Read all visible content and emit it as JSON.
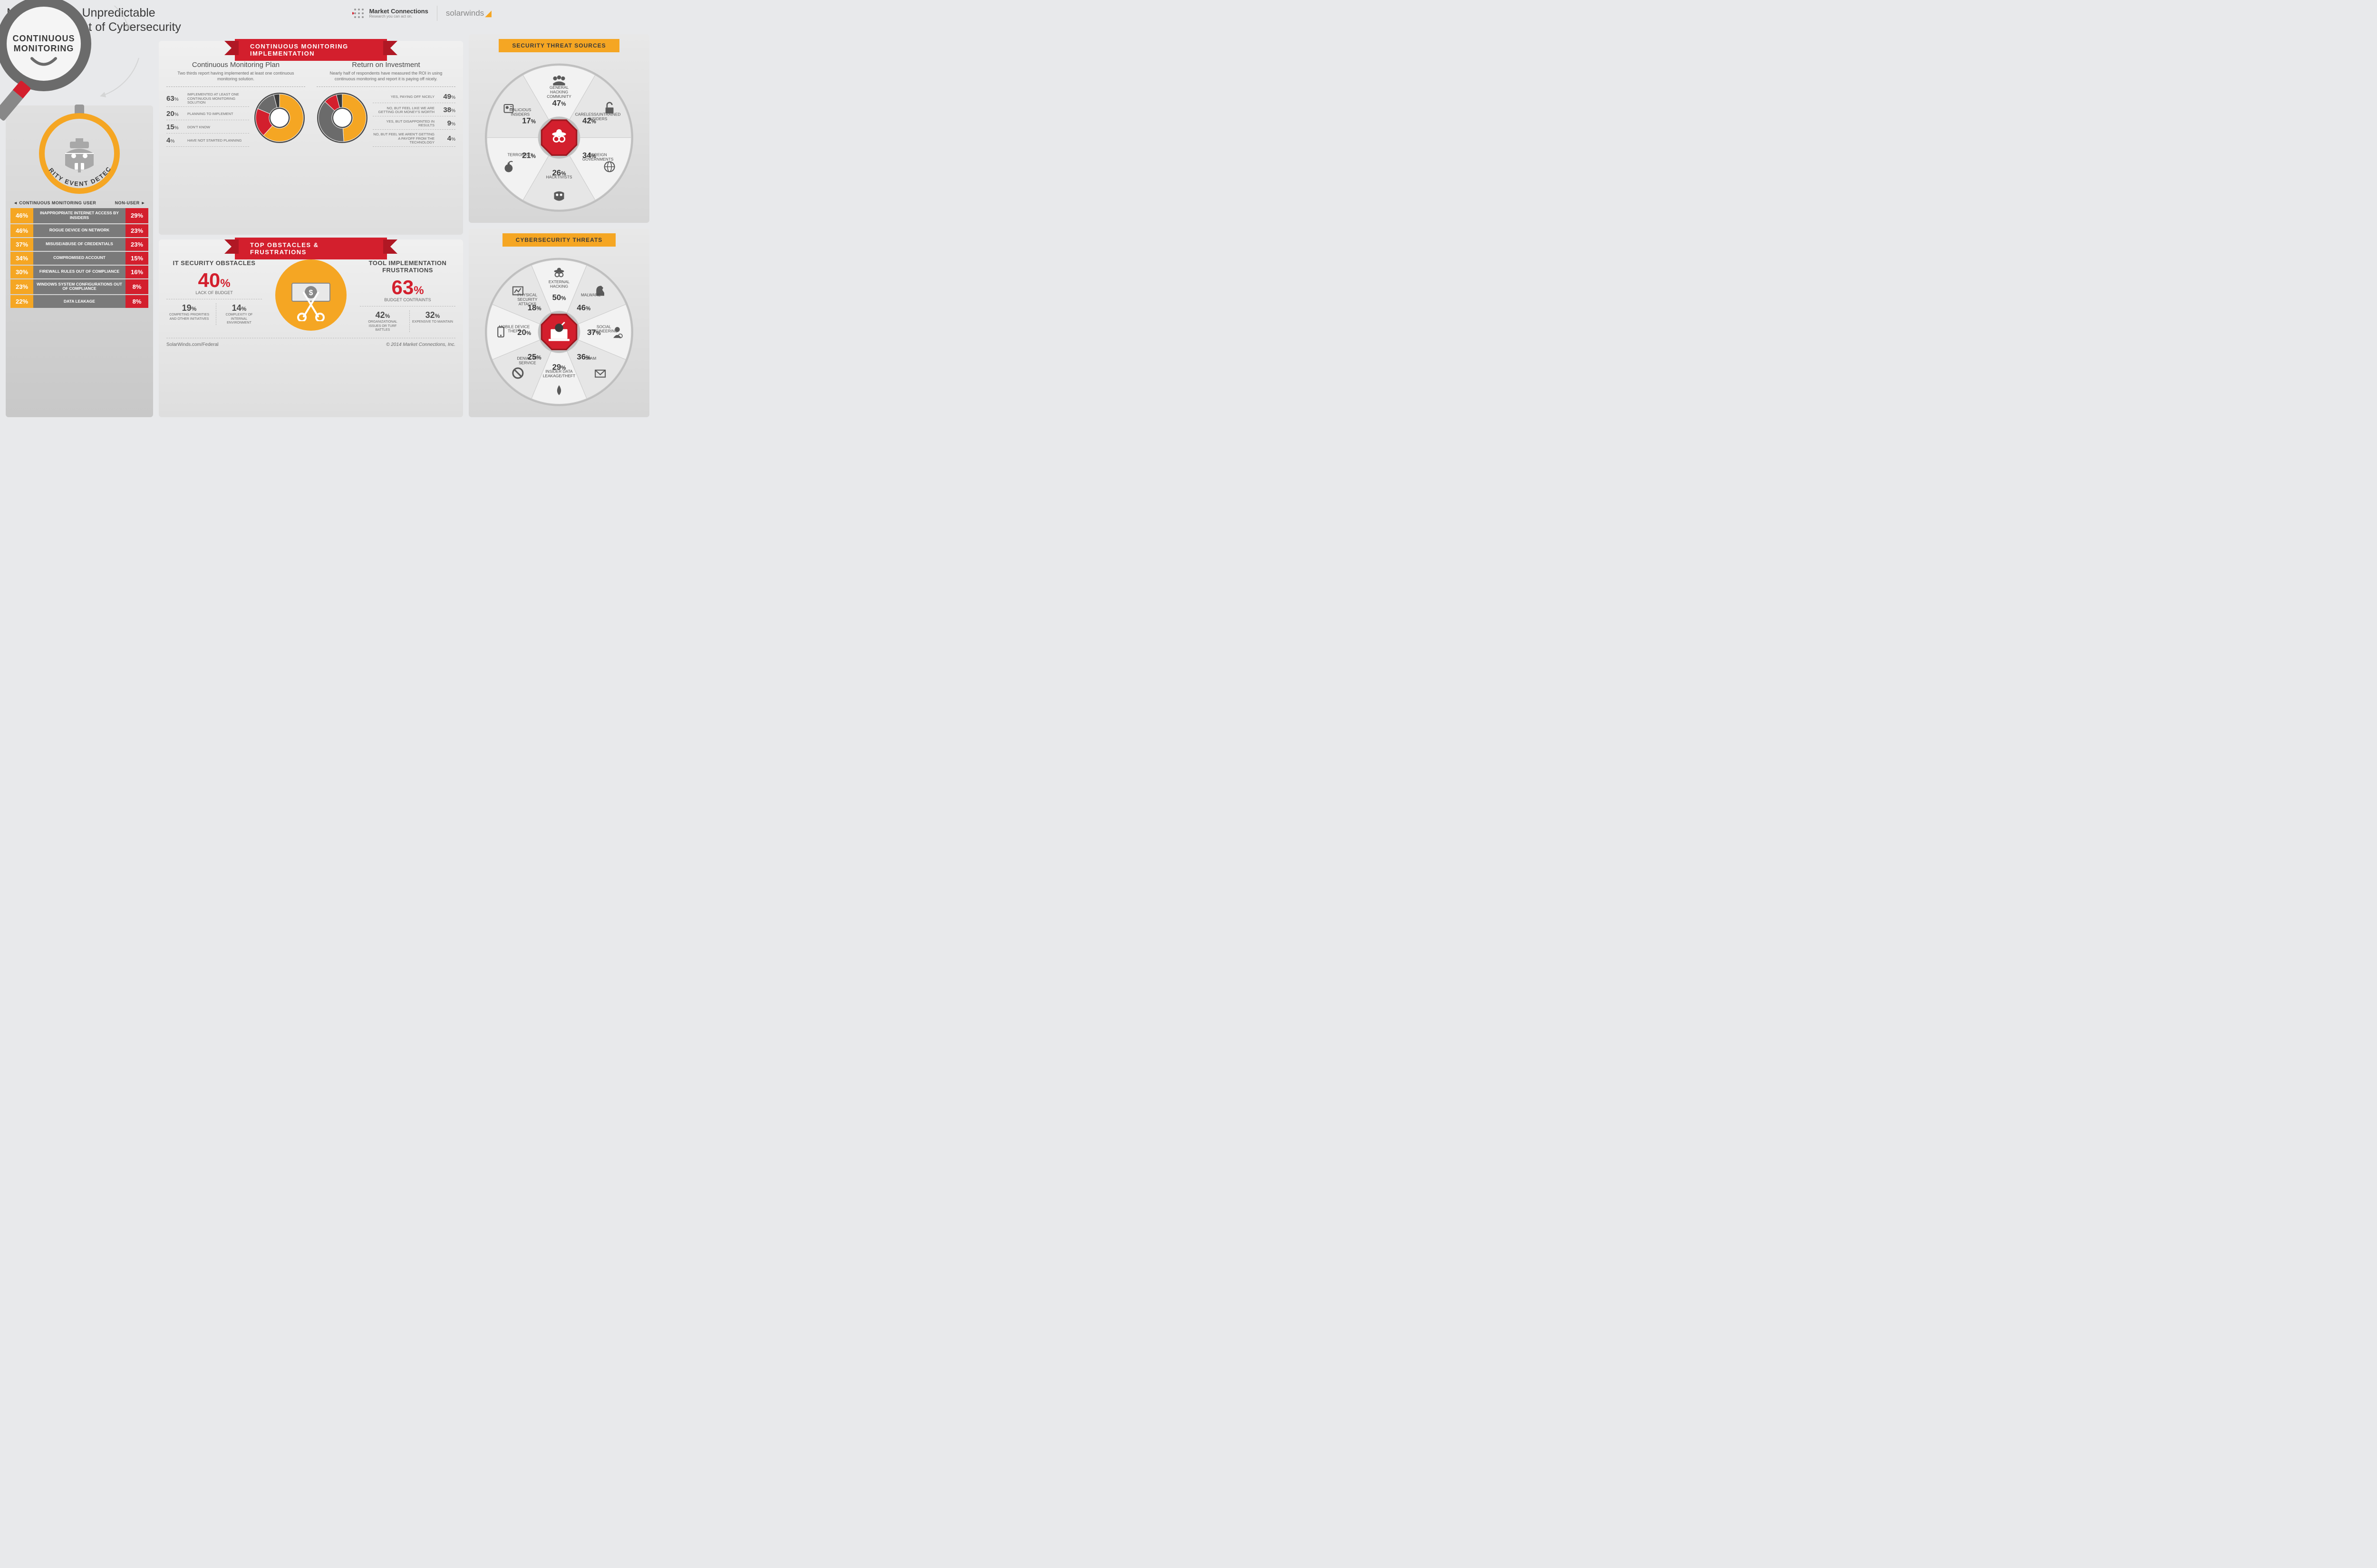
{
  "colors": {
    "orange": "#f5a623",
    "red": "#d31f2d",
    "dark_red": "#9c1820",
    "grey": "#6b6b6b",
    "grey_light": "#a8a8a8",
    "text": "#3a3a3a",
    "bg": "#e8e9eb"
  },
  "header": {
    "title_line1": "Managing the Unpredictable",
    "title_line2": "Human Element of Cybersecurity",
    "logo_mc_name": "Market Connections",
    "logo_mc_tag": "Research you can act on.",
    "logo_sw": "solarwinds"
  },
  "magnifier_label": "CONTINUOUS MONITORING",
  "event_detection": {
    "curved_label": "SECURITY EVENT DETECTION",
    "table_header_left": "CONTINUOUS MONITORING USER",
    "table_header_right": "NON-USER",
    "rows": [
      {
        "user": "46%",
        "label": "INAPPROPRIATE INTERNET ACCESS BY INSIDERS",
        "non": "29%"
      },
      {
        "user": "46%",
        "label": "ROGUE DEVICE ON NETWORK",
        "non": "23%"
      },
      {
        "user": "37%",
        "label": "MISUSE/ABUSE OF CREDENTIALS",
        "non": "23%"
      },
      {
        "user": "34%",
        "label": "COMPROMISED ACCOUNT",
        "non": "15%"
      },
      {
        "user": "30%",
        "label": "FIREWALL RULES OUT OF COMPLIANCE",
        "non": "16%"
      },
      {
        "user": "23%",
        "label": "WINDOWS SYSTEM CONFIGURATIONS OUT OF COMPLIANCE",
        "non": "8%"
      },
      {
        "user": "22%",
        "label": "DATA LEAKAGE",
        "non": "8%"
      }
    ]
  },
  "cmi": {
    "ribbon": "CONTINUOUS MONITORING IMPLEMENTATION",
    "left": {
      "title": "Continuous Monitoring Plan",
      "desc": "Two thirds report having implemented at least one continuous monitoring solution.",
      "rows": [
        {
          "pct": "63",
          "label": "IMPLEMENTED AT LEAST ONE CONTINUOUS MONITORING SOLUTION"
        },
        {
          "pct": "20",
          "label": "PLANNING TO IMPLEMENT"
        },
        {
          "pct": "15",
          "label": "DON'T KNOW"
        },
        {
          "pct": "4",
          "label": "HAVE NOT STARTED PLANNING"
        }
      ],
      "donut": {
        "values": [
          63,
          20,
          15,
          4
        ],
        "colors": [
          "#f5a623",
          "#d31f2d",
          "#6b6b6b",
          "#3a3a3a"
        ]
      }
    },
    "right": {
      "title": "Return on Investment",
      "desc": "Nearly half of respondents have measured the ROI in using continuous monitoring and report it is paying off nicely.",
      "rows": [
        {
          "pct": "49",
          "label": "YES, PAYING OFF NICELY"
        },
        {
          "pct": "38",
          "label": "NO, BUT FEEL LIKE WE ARE GETTING OUR MONEY'S WORTH"
        },
        {
          "pct": "9",
          "label": "YES, BUT DISAPPOINTED IN RESULTS"
        },
        {
          "pct": "4",
          "label": "NO, BUT FEEL WE AREN'T GETTING A PAYOFF FROM THE TECHNOLOGY"
        }
      ],
      "donut": {
        "values": [
          49,
          38,
          9,
          4
        ],
        "colors": [
          "#f5a623",
          "#6b6b6b",
          "#d31f2d",
          "#3a3a3a"
        ]
      }
    }
  },
  "obstacles": {
    "ribbon": "TOP OBSTACLES & FRUSTRATIONS",
    "left": {
      "title": "IT SECURITY OBSTACLES",
      "big_pct": "40",
      "big_label": "LACK OF BUDGET",
      "small": [
        {
          "pct": "19",
          "label": "COMPETING PRIORITIES AND OTHER INITIATIVES"
        },
        {
          "pct": "14",
          "label": "COMPLEXITY OF INTERNAL ENVIRONMENT"
        }
      ]
    },
    "right": {
      "title": "TOOL IMPLEMENTATION FRUSTRATIONS",
      "big_pct": "63",
      "big_label": "BUDGET CONTRAINTS",
      "small": [
        {
          "pct": "42",
          "label": "ORGANIZATIONAL ISSUES OR TURF BATTLES"
        },
        {
          "pct": "32",
          "label": "EXPENSIVE TO MAINTAIN"
        }
      ]
    }
  },
  "footer": {
    "left": "SolarWinds.com/Federal",
    "right": "© 2014 Market Connections, Inc."
  },
  "wheels": {
    "threats_sources": {
      "title": "SECURITY THREAT SOURCES",
      "center_shape": "octagon",
      "center_icon": "spy",
      "segments": [
        {
          "label": "GENERAL HACKING COMMUNITY",
          "pct": "47%",
          "icon": "group"
        },
        {
          "label": "CARELESS/UNTRAINED INSIDERS",
          "pct": "42%",
          "icon": "unlock"
        },
        {
          "label": "FOREIGN GOVERNMENTS",
          "pct": "34%",
          "icon": "globe"
        },
        {
          "label": "HACKTIVISTS",
          "pct": "26%",
          "icon": "mask"
        },
        {
          "label": "TERRORISTS",
          "pct": "21%",
          "icon": "bomb"
        },
        {
          "label": "MALICIOUS INSIDERS",
          "pct": "17%",
          "icon": "badge"
        }
      ]
    },
    "cyber_threats": {
      "title": "CYBERSECURITY THREATS",
      "center_shape": "octagon",
      "center_icon": "laptop-bomb",
      "segments": [
        {
          "label": "EXTERNAL HACKING",
          "pct": "50%",
          "icon": "spy"
        },
        {
          "label": "MALWARE",
          "pct": "46%",
          "icon": "horse"
        },
        {
          "label": "SOCIAL ENGINEERING",
          "pct": "37%",
          "icon": "person"
        },
        {
          "label": "SPAM",
          "pct": "36%",
          "icon": "mail"
        },
        {
          "label": "INSIDER DATA LEAKAGE/THEFT",
          "pct": "29%",
          "icon": "drop"
        },
        {
          "label": "DENIAL OF SERVICE",
          "pct": "25%",
          "icon": "block"
        },
        {
          "label": "MOBILE DEVICE THEFT",
          "pct": "20%",
          "icon": "mobile"
        },
        {
          "label": "PHYSICAL SECURITY ATTACKS",
          "pct": "18%",
          "icon": "chart-break"
        }
      ]
    }
  }
}
